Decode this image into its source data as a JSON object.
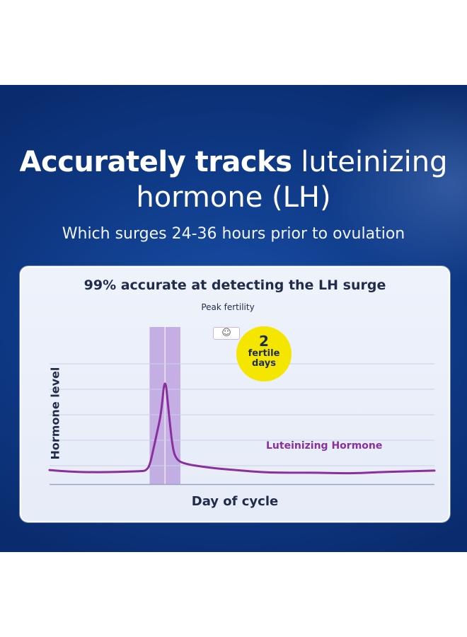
{
  "headline": {
    "bold": "Accurately tracks",
    "light": "luteinizing",
    "line2": "hormone (LH)",
    "subtitle": "Which surges 24-36 hours prior to ovulation"
  },
  "colors": {
    "background": "#0f3a87",
    "card": "#e9eef9",
    "line": "#8a2f9e",
    "fertile_band": "#b798dc",
    "badge": "#f5e600",
    "text_dark": "#1f2d4a"
  },
  "chart_data": {
    "type": "line",
    "title": "99% accurate at detecting the LH surge",
    "xlabel": "Day of cycle",
    "ylabel": "Hormone level",
    "grid": true,
    "series": [
      {
        "name": "Luteinizing Hormone",
        "x": [
          0,
          5,
          10,
          15,
          20,
          24,
          25,
          26,
          27,
          28,
          29,
          30,
          31,
          32,
          33,
          35,
          40,
          45,
          50,
          55,
          60,
          65,
          70,
          75,
          80,
          85,
          90,
          95,
          100
        ],
        "values": [
          8,
          6.5,
          6,
          6,
          6.5,
          7,
          7.5,
          12,
          28,
          45,
          62,
          100,
          62,
          28,
          18,
          14,
          11,
          9,
          7.5,
          6,
          5.5,
          5.5,
          5.5,
          5,
          5,
          6,
          6.5,
          7,
          7.5
        ]
      }
    ],
    "xlim": [
      0,
      100
    ],
    "ylim": [
      0,
      100
    ],
    "fertile_window": {
      "start": 26,
      "end": 34,
      "peak": 30
    },
    "annotations": {
      "peak": "Peak fertility",
      "badge_number": "2",
      "badge_text": "fertile days",
      "smiley": "☺"
    }
  }
}
